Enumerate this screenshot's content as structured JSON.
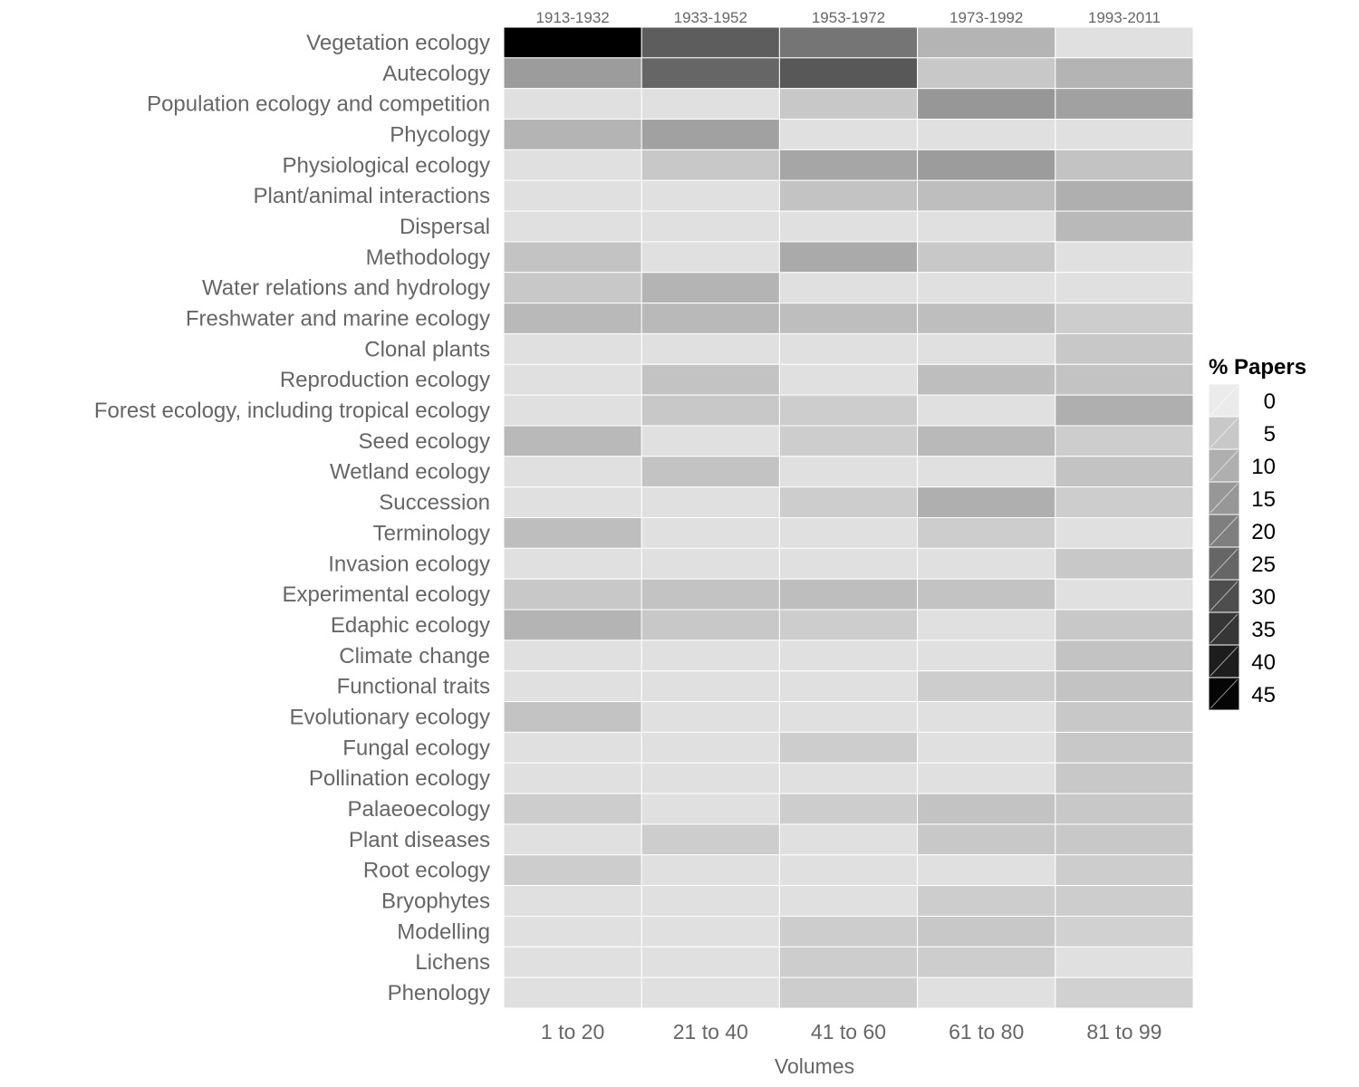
{
  "chart_data": {
    "type": "heatmap",
    "xlabel": "Volumes",
    "columns": [
      "1 to 20",
      "21 to 40",
      "41 to 60",
      "61 to 80",
      "81 to 99"
    ],
    "column_periods": [
      "1913-1932",
      "1933-1952",
      "1953-1972",
      "1973-1992",
      "1993-2011"
    ],
    "rows": [
      "Vegetation ecology",
      "Autecology",
      "Population ecology and competition",
      "Phycology",
      "Physiological ecology",
      "Plant/animal interactions",
      "Dispersal",
      "Methodology",
      "Water relations and hydrology",
      "Freshwater and marine ecology",
      "Clonal plants",
      "Reproduction ecology",
      "Forest ecology, including tropical ecology",
      "Seed ecology",
      "Wetland ecology",
      "Succession",
      "Terminology",
      "Invasion ecology",
      "Experimental ecology",
      "Edaphic ecology",
      "Climate change",
      "Functional traits",
      "Evolutionary ecology",
      "Fungal ecology",
      "Pollination ecology",
      "Palaeoecology",
      "Plant diseases",
      "Root ecology",
      "Bryophytes",
      "Modelling",
      "Lichens",
      "Phenology"
    ],
    "values": [
      [
        46,
        27,
        22,
        9,
        0
      ],
      [
        14,
        25,
        28,
        5,
        9
      ],
      [
        0,
        0,
        5,
        15,
        13
      ],
      [
        9,
        13,
        0,
        0,
        0
      ],
      [
        0,
        5,
        12,
        14,
        6
      ],
      [
        0,
        0,
        6,
        7,
        10
      ],
      [
        0,
        0,
        0,
        0,
        8
      ],
      [
        6,
        0,
        11,
        5,
        0
      ],
      [
        5,
        9,
        0,
        0,
        0
      ],
      [
        8,
        8,
        7,
        7,
        4
      ],
      [
        0,
        0,
        0,
        0,
        5
      ],
      [
        0,
        6,
        0,
        7,
        6
      ],
      [
        0,
        5,
        4,
        0,
        10
      ],
      [
        8,
        0,
        4,
        8,
        4
      ],
      [
        0,
        6,
        0,
        0,
        6
      ],
      [
        0,
        0,
        4,
        10,
        4
      ],
      [
        7,
        0,
        0,
        4,
        0
      ],
      [
        0,
        0,
        0,
        0,
        5
      ],
      [
        5,
        6,
        7,
        6,
        0
      ],
      [
        9,
        5,
        4,
        0,
        5
      ],
      [
        0,
        0,
        0,
        0,
        6
      ],
      [
        0,
        0,
        0,
        4,
        6
      ],
      [
        6,
        0,
        0,
        0,
        5
      ],
      [
        0,
        0,
        4,
        0,
        5
      ],
      [
        0,
        0,
        0,
        0,
        5
      ],
      [
        4,
        0,
        4,
        6,
        5
      ],
      [
        0,
        4,
        0,
        5,
        5
      ],
      [
        4,
        0,
        0,
        0,
        4
      ],
      [
        0,
        0,
        0,
        4,
        4
      ],
      [
        0,
        0,
        4,
        5,
        3
      ],
      [
        0,
        0,
        4,
        4,
        0
      ],
      [
        0,
        0,
        4,
        0,
        3
      ]
    ],
    "legend": {
      "title": "% Papers",
      "breaks": [
        0,
        5,
        10,
        15,
        20,
        25,
        30,
        35,
        40,
        45
      ],
      "position": "right"
    },
    "color_scale": {
      "low": "#e0e0e0",
      "high": "#000000",
      "min": 0,
      "max": 46
    }
  }
}
